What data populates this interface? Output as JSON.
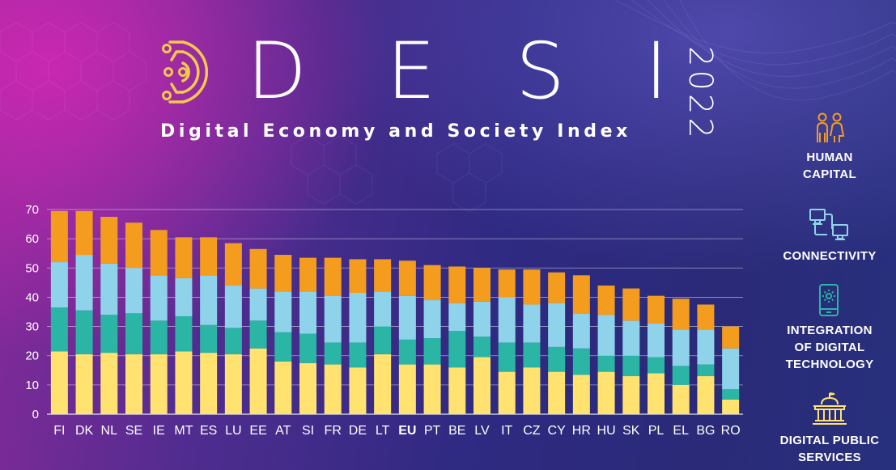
{
  "header": {
    "logo_letters": [
      "D",
      "E",
      "S",
      "I"
    ],
    "year": "2022",
    "subtitle": "Digital Economy and Society Index"
  },
  "legend": [
    {
      "label": "HUMAN\nCAPITAL",
      "icon": "people-icon",
      "color": "#f39c1e"
    },
    {
      "label": "CONNECTIVITY",
      "icon": "network-computers-icon",
      "color": "#8fd3ea"
    },
    {
      "label": "INTEGRATION\nOF DIGITAL\nTECHNOLOGY",
      "icon": "smartphone-gear-icon",
      "color": "#2bb5a4"
    },
    {
      "label": "DIGITAL PUBLIC\nSERVICES",
      "icon": "government-building-icon",
      "color": "#ffe270"
    }
  ],
  "chart_data": {
    "type": "bar",
    "stacked": true,
    "categories": [
      "FI",
      "DK",
      "NL",
      "SE",
      "IE",
      "MT",
      "ES",
      "LU",
      "EE",
      "AT",
      "SI",
      "FR",
      "DE",
      "LT",
      "EU",
      "PT",
      "BE",
      "LV",
      "IT",
      "CZ",
      "CY",
      "HR",
      "HU",
      "SK",
      "PL",
      "EL",
      "BG",
      "RO"
    ],
    "highlight_category": "EU",
    "ylim": [
      0,
      70
    ],
    "yticks": [
      0,
      10,
      20,
      30,
      40,
      50,
      60,
      70
    ],
    "grid": true,
    "series": [
      {
        "name": "DIGITAL PUBLIC SERVICES",
        "color": "#ffe270",
        "values": [
          21.5,
          20.5,
          21,
          20.5,
          20.5,
          21.5,
          21,
          20.5,
          22.5,
          18,
          17.5,
          17,
          16,
          20.5,
          17,
          17,
          16,
          19.5,
          14.5,
          16,
          14.5,
          13.5,
          14.5,
          13,
          14,
          10,
          13,
          5
        ]
      },
      {
        "name": "INTEGRATION OF DIGITAL TECHNOLOGY",
        "color": "#2bb5a4",
        "values": [
          15,
          15,
          13,
          14,
          11.5,
          12,
          9.5,
          9,
          9.5,
          10,
          10,
          7.5,
          8.5,
          9.5,
          8.5,
          9,
          12.5,
          7,
          10,
          8.5,
          8.5,
          9,
          5.5,
          7,
          5.5,
          6.5,
          4,
          3.5
        ]
      },
      {
        "name": "CONNECTIVITY",
        "color": "#8fd3ea",
        "values": [
          15.5,
          19,
          17.5,
          15.5,
          15.5,
          13,
          17,
          14.5,
          11,
          14,
          14.5,
          16,
          17,
          12,
          15,
          13,
          9.5,
          12,
          15.5,
          13,
          15,
          12,
          14,
          12,
          11.5,
          12.5,
          12,
          14
        ]
      },
      {
        "name": "HUMAN CAPITAL",
        "color": "#f39c1e",
        "values": [
          17.5,
          15,
          16,
          15.5,
          15.5,
          14,
          13,
          14.5,
          13.5,
          12.5,
          11.5,
          13,
          11.5,
          11,
          12,
          12,
          12.5,
          11.5,
          9.5,
          12,
          10.5,
          13,
          10,
          11,
          9.5,
          10.5,
          8.5,
          7.5
        ]
      }
    ]
  }
}
